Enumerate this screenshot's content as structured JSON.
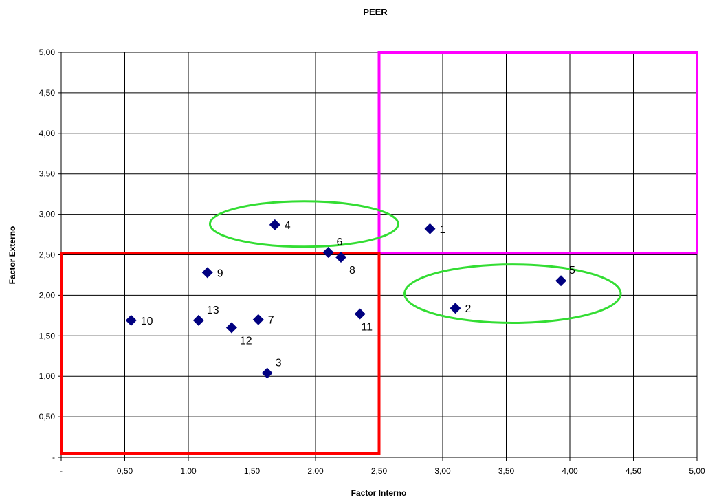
{
  "chart_data": {
    "type": "scatter",
    "title": "PEER",
    "xlabel": "Factor Interno",
    "ylabel": "Factor Externo",
    "xlim": [
      0,
      5
    ],
    "ylim": [
      0,
      5
    ],
    "grid": true,
    "x_ticks": [
      "-",
      "0,50",
      "1,00",
      "1,50",
      "2,00",
      "2,50",
      "3,00",
      "3,50",
      "4,00",
      "4,50",
      "5,00"
    ],
    "y_ticks": [
      "-",
      "0,50",
      "1,00",
      "1,50",
      "2,00",
      "2,50",
      "3,00",
      "3,50",
      "4,00",
      "4,50",
      "5,00"
    ],
    "marker_color": "#000080",
    "points": [
      {
        "label": "1",
        "x": 2.9,
        "y": 2.82,
        "label_pos": "right"
      },
      {
        "label": "2",
        "x": 3.1,
        "y": 1.84,
        "label_pos": "right"
      },
      {
        "label": "3",
        "x": 1.62,
        "y": 1.04,
        "label_pos": "upper-right"
      },
      {
        "label": "4",
        "x": 1.68,
        "y": 2.87,
        "label_pos": "right"
      },
      {
        "label": "5",
        "x": 3.93,
        "y": 2.18,
        "label_pos": "upper-right"
      },
      {
        "label": "6",
        "x": 2.1,
        "y": 2.53,
        "label_pos": "upper-right"
      },
      {
        "label": "7",
        "x": 1.55,
        "y": 1.7,
        "label_pos": "right"
      },
      {
        "label": "8",
        "x": 2.2,
        "y": 2.47,
        "label_pos": "lower-right"
      },
      {
        "label": "9",
        "x": 1.15,
        "y": 2.28,
        "label_pos": "right"
      },
      {
        "label": "10",
        "x": 0.55,
        "y": 1.69,
        "label_pos": "right"
      },
      {
        "label": "11",
        "x": 2.35,
        "y": 1.77,
        "label_pos": "below"
      },
      {
        "label": "12",
        "x": 1.34,
        "y": 1.6,
        "label_pos": "lower-right"
      },
      {
        "label": "13",
        "x": 1.08,
        "y": 1.69,
        "label_pos": "upper-right"
      }
    ],
    "regions": [
      {
        "shape": "rect",
        "color": "#ff00ff",
        "x0": 2.5,
        "x1": 5.0,
        "y0": 2.52,
        "y1": 5.0
      },
      {
        "shape": "rect",
        "color": "#ff0000",
        "x0": 0.0,
        "x1": 2.5,
        "y0": 0.05,
        "y1": 2.52
      },
      {
        "shape": "ellipse",
        "color": "#33dd33",
        "cx": 1.91,
        "cy": 2.88,
        "rx": 0.74,
        "ry": 0.28
      },
      {
        "shape": "ellipse",
        "color": "#33dd33",
        "cx": 3.55,
        "cy": 2.02,
        "rx": 0.85,
        "ry": 0.36
      }
    ]
  }
}
